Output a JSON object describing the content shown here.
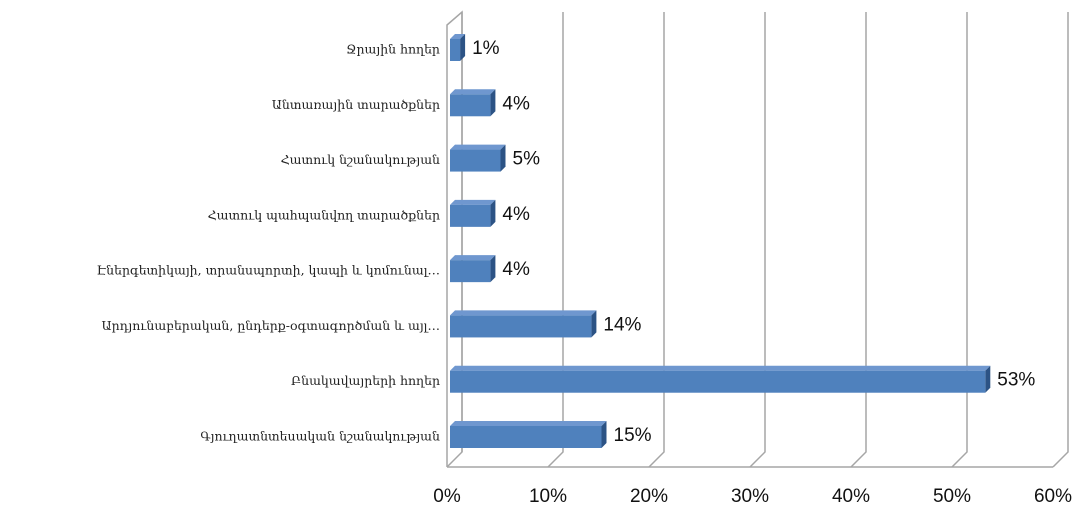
{
  "chart_data": {
    "type": "bar3d_horizontal",
    "categories": [
      "Ջրային հողեր",
      "Անտառային տարածքներ",
      "Հատուկ նշանակության",
      "Հատուկ պահպանվող տարածքներ",
      "Էներգետիկայի, տրանսպորտի, կապի և կոմունալ…",
      "Արդյունաբերական, ընդերք-օգտագործման և այլ…",
      "Բնակավայրերի հողեր",
      "Գյուղատնտեսական նշանակության"
    ],
    "values": [
      1,
      4,
      5,
      4,
      4,
      14,
      53,
      15
    ],
    "value_labels": [
      "1%",
      "4%",
      "5%",
      "4%",
      "4%",
      "14%",
      "53%",
      "15%"
    ],
    "color": "#4f81bd",
    "xlim": [
      0,
      60
    ],
    "xticks": [
      {
        "value": 0,
        "label": "0%"
      },
      {
        "value": 10,
        "label": "10%"
      },
      {
        "value": 20,
        "label": "20%"
      },
      {
        "value": 30,
        "label": "30%"
      },
      {
        "value": 40,
        "label": "40%"
      },
      {
        "value": 50,
        "label": "50%"
      },
      {
        "value": 60,
        "label": "60%"
      }
    ],
    "grid": true
  }
}
